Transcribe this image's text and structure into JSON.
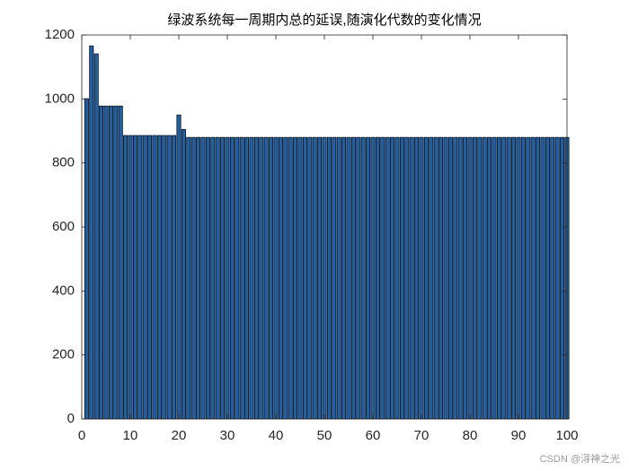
{
  "chart_data": {
    "type": "bar",
    "title": "绿波系统每一周期内总的延误,随演化代数的变化情况",
    "x": [
      1,
      2,
      3,
      4,
      5,
      6,
      7,
      8,
      9,
      10,
      11,
      12,
      13,
      14,
      15,
      16,
      17,
      18,
      19,
      20,
      21,
      22,
      23,
      24,
      25,
      26,
      27,
      28,
      29,
      30,
      31,
      32,
      33,
      34,
      35,
      36,
      37,
      38,
      39,
      40,
      41,
      42,
      43,
      44,
      45,
      46,
      47,
      48,
      49,
      50,
      51,
      52,
      53,
      54,
      55,
      56,
      57,
      58,
      59,
      60,
      61,
      62,
      63,
      64,
      65,
      66,
      67,
      68,
      69,
      70,
      71,
      72,
      73,
      74,
      75,
      76,
      77,
      78,
      79,
      80,
      81,
      82,
      83,
      84,
      85,
      86,
      87,
      88,
      89,
      90,
      91,
      92,
      93,
      94,
      95,
      96,
      97,
      98,
      99,
      100
    ],
    "values": [
      1001,
      1166,
      1141,
      978,
      978,
      978,
      978,
      978,
      886,
      886,
      886,
      886,
      886,
      886,
      886,
      886,
      886,
      886,
      886,
      950,
      905,
      880,
      880,
      880,
      880,
      880,
      880,
      880,
      880,
      880,
      880,
      880,
      880,
      880,
      880,
      880,
      880,
      880,
      880,
      880,
      880,
      880,
      880,
      880,
      880,
      880,
      880,
      880,
      880,
      880,
      880,
      880,
      880,
      880,
      880,
      880,
      880,
      880,
      880,
      880,
      880,
      880,
      880,
      880,
      880,
      880,
      880,
      880,
      880,
      880,
      880,
      880,
      880,
      880,
      880,
      880,
      880,
      880,
      880,
      880,
      880,
      880,
      880,
      880,
      880,
      880,
      880,
      880,
      880,
      880,
      880,
      880,
      880,
      880,
      880,
      880,
      880,
      880,
      880,
      880
    ],
    "color": "#1f5fa6",
    "xlim": [
      0,
      100
    ],
    "xticks": [
      0,
      10,
      20,
      30,
      40,
      50,
      60,
      70,
      80,
      90,
      100
    ],
    "ylim": [
      0,
      1200
    ],
    "yticks": [
      0,
      200,
      400,
      600,
      800,
      1000,
      1200
    ],
    "watermark": "CSDN @浔神之光"
  }
}
